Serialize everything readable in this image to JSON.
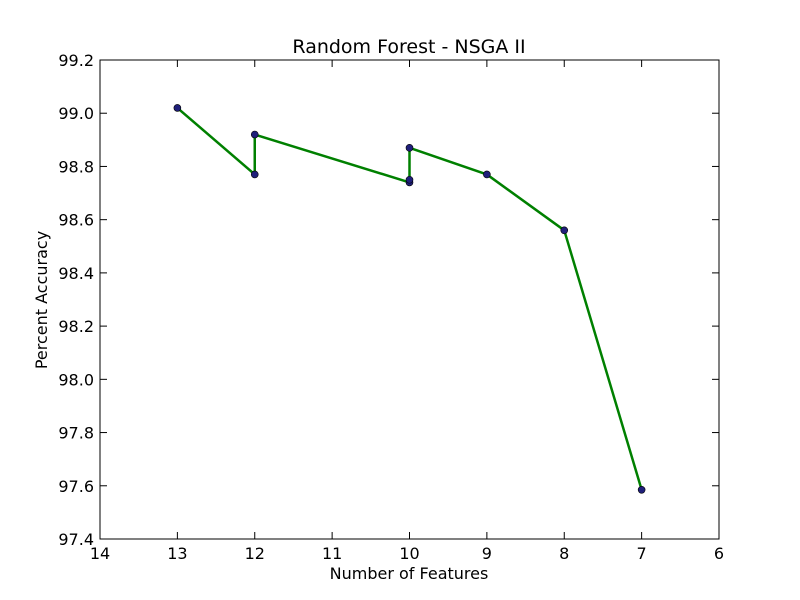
{
  "chart_data": {
    "type": "line",
    "title": "Random Forest - NSGA II",
    "xlabel": "Number of Features",
    "ylabel": "Percent Accuracy",
    "xlim": [
      14,
      6
    ],
    "ylim": [
      97.4,
      99.2
    ],
    "x_ticks": [
      "14",
      "13",
      "12",
      "11",
      "10",
      "9",
      "8",
      "7",
      "6"
    ],
    "y_ticks": [
      "97.4",
      "97.6",
      "97.8",
      "98.0",
      "98.2",
      "98.4",
      "98.6",
      "98.8",
      "99.0",
      "99.2"
    ],
    "grid": false,
    "line_color": "#008000",
    "marker_color": "#1f1f7a",
    "points": [
      {
        "x": 13,
        "y": 99.02
      },
      {
        "x": 12,
        "y": 98.77
      },
      {
        "x": 12,
        "y": 98.92
      },
      {
        "x": 10,
        "y": 98.74
      },
      {
        "x": 10,
        "y": 98.75
      },
      {
        "x": 10,
        "y": 98.87
      },
      {
        "x": 9,
        "y": 98.77
      },
      {
        "x": 8,
        "y": 98.56
      },
      {
        "x": 7,
        "y": 97.585
      }
    ]
  }
}
